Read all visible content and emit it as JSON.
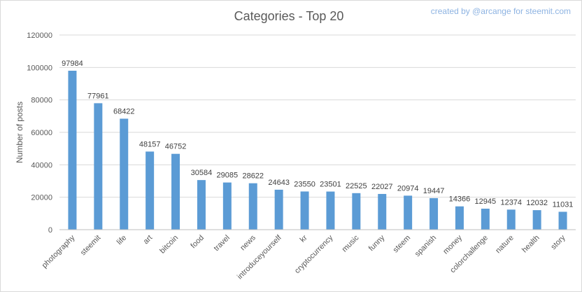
{
  "chart_data": {
    "type": "bar",
    "title": "Categories - Top 20",
    "credit": "created by @arcange for steemit.com",
    "xlabel": "",
    "ylabel": "Number of posts",
    "ylim": [
      0,
      120000
    ],
    "yticks": [
      "0",
      "20000",
      "40000",
      "60000",
      "80000",
      "100000",
      "120000"
    ],
    "grid": true,
    "bar_color": "#5b9bd5",
    "categories": [
      "photography",
      "steemit",
      "life",
      "art",
      "bitcoin",
      "food",
      "travel",
      "news",
      "introduceyourself",
      "kr",
      "cryptocurrency",
      "music",
      "funny",
      "steem",
      "spanish",
      "money",
      "colorchallenge",
      "nature",
      "health",
      "story"
    ],
    "values": [
      97984,
      77961,
      68422,
      48157,
      46752,
      30584,
      29085,
      28622,
      24643,
      23550,
      23501,
      22525,
      22027,
      20974,
      19447,
      14366,
      12945,
      12374,
      12032,
      11031
    ]
  }
}
